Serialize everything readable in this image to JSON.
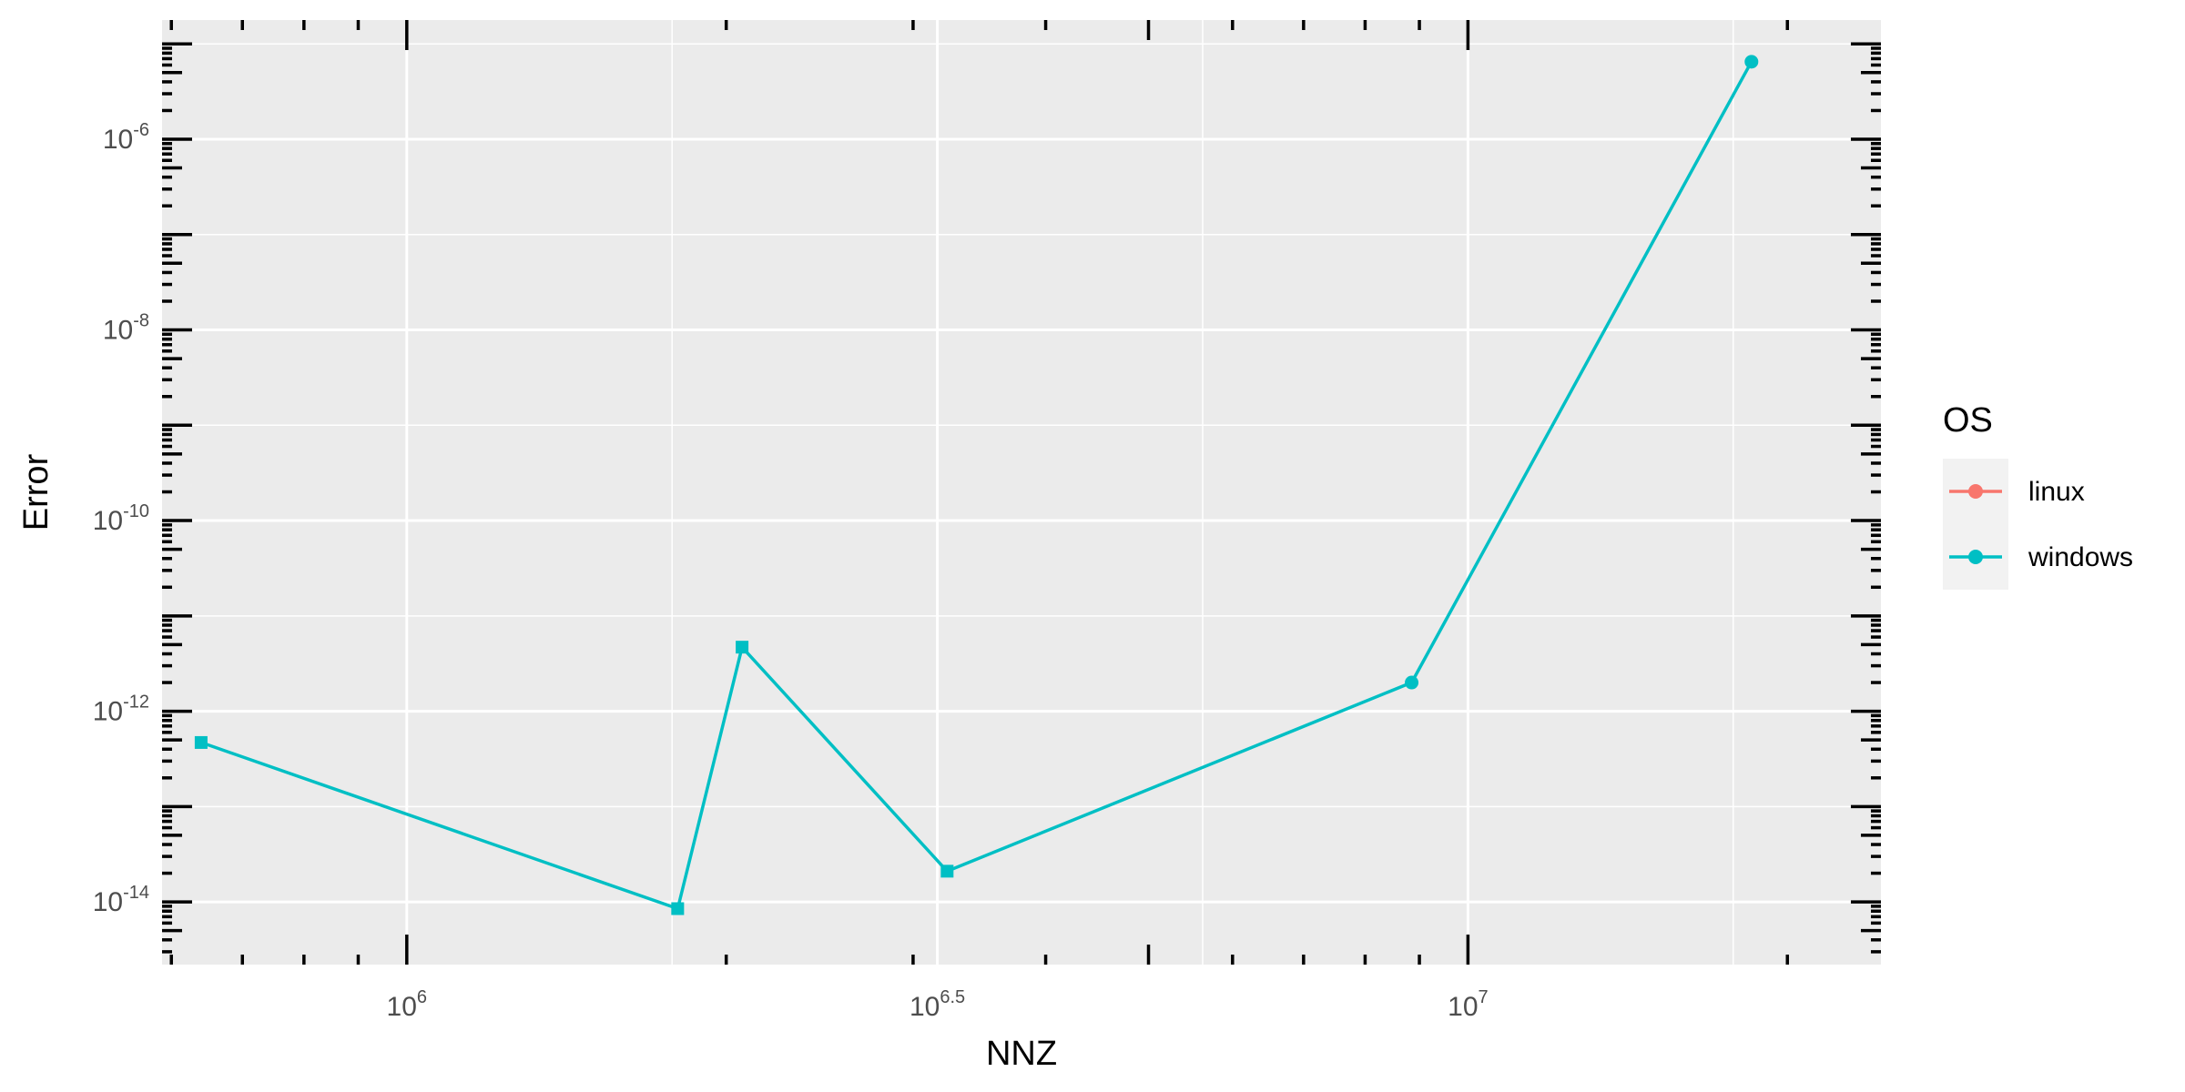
{
  "chart_data": {
    "type": "line",
    "xlabel": "NNZ",
    "ylabel": "Error",
    "x_scale": "log10",
    "y_scale": "log10",
    "xlim": [
      588000,
      24500000
    ],
    "ylim": [
      2.2e-15,
      1.78e-05
    ],
    "x_ticks": [
      {
        "value": 1000000,
        "base": "10",
        "exp": "6"
      },
      {
        "value": 3162278,
        "base": "10",
        "exp": "6.5"
      },
      {
        "value": 10000000,
        "base": "10",
        "exp": "7"
      }
    ],
    "y_ticks": [
      {
        "value": 1e-06,
        "base": "10",
        "exp": "-6"
      },
      {
        "value": 1e-08,
        "base": "10",
        "exp": "-8"
      },
      {
        "value": 1e-10,
        "base": "10",
        "exp": "-10"
      },
      {
        "value": 1e-12,
        "base": "10",
        "exp": "-12"
      },
      {
        "value": 1e-14,
        "base": "10",
        "exp": "-14"
      }
    ],
    "grid": true,
    "legend": {
      "title": "OS",
      "placement": "right",
      "entries": [
        {
          "label": "linux",
          "color": "#F8766D"
        },
        {
          "label": "windows",
          "color": "#00BFC4"
        }
      ]
    },
    "series": [
      {
        "name": "windows",
        "color": "#00BFC4",
        "points": [
          {
            "x": 640000,
            "y": 4.7e-13,
            "shape": "square"
          },
          {
            "x": 1800000,
            "y": 8.5e-15,
            "shape": "square"
          },
          {
            "x": 2070000,
            "y": 4.7e-12,
            "shape": "square"
          },
          {
            "x": 3230000,
            "y": 2.1e-14,
            "shape": "square"
          },
          {
            "x": 8850000,
            "y": 2e-12,
            "shape": "circle"
          },
          {
            "x": 18500000,
            "y": 6.5e-06,
            "shape": "circle"
          }
        ]
      }
    ]
  }
}
